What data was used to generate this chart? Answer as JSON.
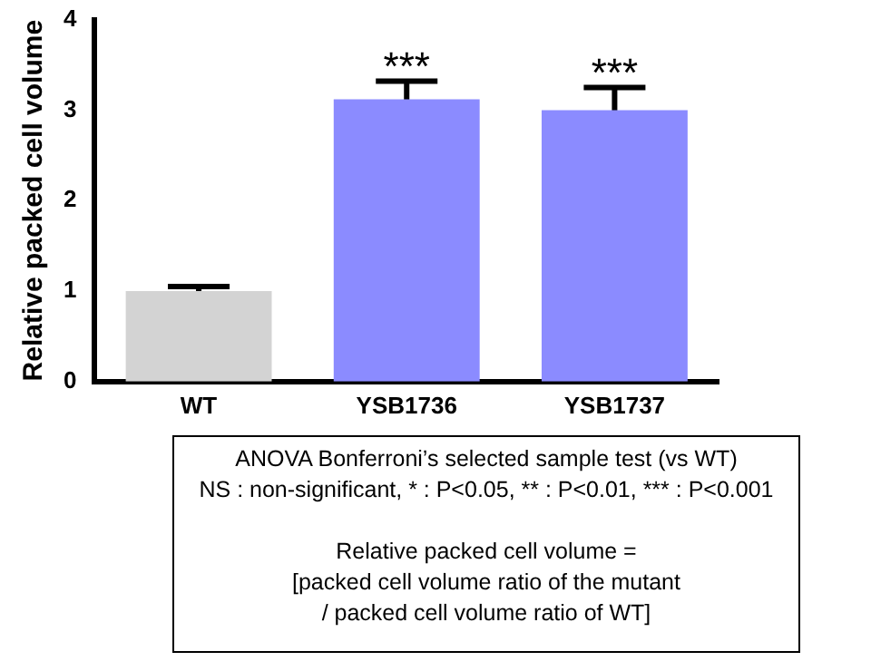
{
  "chart_data": {
    "type": "bar",
    "ylabel": "Relative packed cell volume",
    "categories": [
      "WT",
      "YSB1736",
      "YSB1737"
    ],
    "values": [
      1.0,
      3.12,
      3.0
    ],
    "errors": [
      0.05,
      0.2,
      0.25
    ],
    "colors": [
      "#d3d3d3",
      "#8b8bff",
      "#8b8bff"
    ],
    "ylim": [
      0,
      4
    ],
    "yticks": [
      0,
      1,
      2,
      3,
      4
    ],
    "grid": false,
    "legend": false,
    "annotations": [
      {
        "text": "***",
        "x": "YSB1736",
        "y": 3.32
      },
      {
        "text": "***",
        "x": "YSB1737",
        "y": 3.25
      },
      "ANOVA Bonferroni’s selected sample test (vs WT)",
      "NS : non-significant, * : P<0.05, ** : P<0.01, *** : P<0.001",
      "Relative packed cell volume =",
      "[packed cell volume ratio of the mutant",
      "/ packed cell volume ratio of WT]"
    ]
  }
}
